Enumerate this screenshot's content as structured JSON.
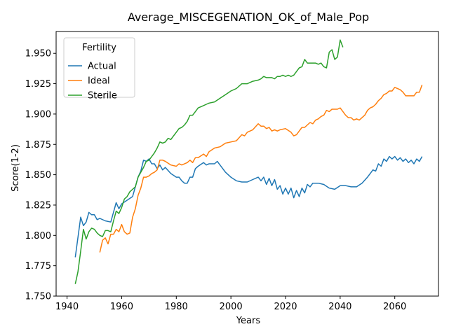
{
  "chart_data": {
    "type": "line",
    "title": "Average_MISCEGENATION_OK_of_Male_Pop",
    "xlabel": "Years",
    "ylabel": "Score(1-2)",
    "xlim": [
      1936,
      2076
    ],
    "ylim": [
      1.75,
      1.968
    ],
    "xticks": [
      1940,
      1960,
      1980,
      2000,
      2020,
      2040,
      2060
    ],
    "yticks": [
      1.75,
      1.775,
      1.8,
      1.825,
      1.85,
      1.875,
      1.9,
      1.925,
      1.95
    ],
    "ytick_labels": [
      "1.750",
      "1.775",
      "1.800",
      "1.825",
      "1.850",
      "1.875",
      "1.900",
      "1.925",
      "1.950"
    ],
    "grid": false,
    "legend": {
      "title": "Fertility",
      "placement": "top-left"
    },
    "series": [
      {
        "name": "Actual",
        "color": "#1f77b4",
        "x": [
          1943,
          1945,
          1946,
          1947,
          1948,
          1949,
          1950,
          1951,
          1952,
          1954,
          1956,
          1958,
          1959,
          1960,
          1962,
          1964,
          1966,
          1967,
          1968,
          1969,
          1970,
          1971,
          1972,
          1973,
          1974,
          1975,
          1976,
          1978,
          1980,
          1981,
          1982,
          1983,
          1984,
          1985,
          1986,
          1987,
          1988,
          1990,
          1991,
          1992,
          1994,
          1995,
          1996,
          1998,
          2000,
          2002,
          2004,
          2006,
          2008,
          2010,
          2011,
          2012,
          2013,
          2014,
          2015,
          2016,
          2017,
          2018,
          2019,
          2020,
          2021,
          2022,
          2023,
          2024,
          2025,
          2026,
          2027,
          2028,
          2029,
          2030,
          2032,
          2034,
          2036,
          2038,
          2040,
          2042,
          2044,
          2046,
          2048,
          2050,
          2052,
          2053,
          2054,
          2055,
          2056,
          2057,
          2058,
          2059,
          2060,
          2061,
          2062,
          2063,
          2064,
          2065,
          2066,
          2067,
          2068,
          2069,
          2070
        ],
        "y": [
          1.782,
          1.815,
          1.808,
          1.811,
          1.819,
          1.817,
          1.817,
          1.813,
          1.814,
          1.812,
          1.811,
          1.827,
          1.822,
          1.826,
          1.829,
          1.832,
          1.848,
          1.853,
          1.862,
          1.861,
          1.863,
          1.859,
          1.859,
          1.855,
          1.858,
          1.854,
          1.856,
          1.851,
          1.848,
          1.848,
          1.845,
          1.843,
          1.843,
          1.848,
          1.848,
          1.855,
          1.857,
          1.86,
          1.858,
          1.859,
          1.859,
          1.861,
          1.858,
          1.852,
          1.848,
          1.845,
          1.844,
          1.844,
          1.846,
          1.848,
          1.845,
          1.848,
          1.842,
          1.847,
          1.841,
          1.846,
          1.838,
          1.841,
          1.834,
          1.839,
          1.834,
          1.839,
          1.831,
          1.837,
          1.832,
          1.839,
          1.835,
          1.842,
          1.84,
          1.843,
          1.843,
          1.842,
          1.839,
          1.838,
          1.841,
          1.841,
          1.84,
          1.84,
          1.843,
          1.848,
          1.854,
          1.853,
          1.859,
          1.857,
          1.863,
          1.861,
          1.865,
          1.863,
          1.865,
          1.862,
          1.864,
          1.861,
          1.863,
          1.86,
          1.862,
          1.859,
          1.863,
          1.861,
          1.865
        ]
      },
      {
        "name": "Ideal",
        "color": "#ff7f0e",
        "x": [
          1952,
          1953,
          1954,
          1955,
          1956,
          1957,
          1958,
          1959,
          1960,
          1961,
          1962,
          1963,
          1964,
          1965,
          1966,
          1967,
          1968,
          1969,
          1970,
          1971,
          1972,
          1973,
          1974,
          1975,
          1976,
          1978,
          1980,
          1981,
          1982,
          1984,
          1985,
          1986,
          1987,
          1988,
          1990,
          1991,
          1992,
          1994,
          1996,
          1998,
          2000,
          2002,
          2004,
          2005,
          2006,
          2008,
          2010,
          2011,
          2012,
          2013,
          2014,
          2015,
          2016,
          2017,
          2018,
          2020,
          2022,
          2023,
          2024,
          2025,
          2026,
          2027,
          2028,
          2029,
          2030,
          2031,
          2032,
          2033,
          2034,
          2035,
          2036,
          2037,
          2038,
          2039,
          2040,
          2041,
          2042,
          2043,
          2044,
          2045,
          2046,
          2047,
          2048,
          2049,
          2050,
          2051,
          2052,
          2053,
          2054,
          2055,
          2056,
          2057,
          2058,
          2059,
          2060,
          2062,
          2063,
          2064,
          2065,
          2066,
          2067,
          2068,
          2069,
          2070
        ],
        "y": [
          1.786,
          1.796,
          1.798,
          1.793,
          1.801,
          1.801,
          1.805,
          1.803,
          1.809,
          1.803,
          1.801,
          1.802,
          1.815,
          1.822,
          1.833,
          1.839,
          1.848,
          1.848,
          1.849,
          1.851,
          1.852,
          1.854,
          1.862,
          1.862,
          1.861,
          1.858,
          1.857,
          1.859,
          1.858,
          1.86,
          1.862,
          1.86,
          1.864,
          1.864,
          1.867,
          1.865,
          1.869,
          1.872,
          1.873,
          1.876,
          1.877,
          1.878,
          1.883,
          1.882,
          1.885,
          1.887,
          1.892,
          1.89,
          1.89,
          1.888,
          1.889,
          1.886,
          1.887,
          1.886,
          1.887,
          1.888,
          1.885,
          1.882,
          1.883,
          1.886,
          1.889,
          1.889,
          1.891,
          1.893,
          1.892,
          1.895,
          1.896,
          1.898,
          1.899,
          1.903,
          1.902,
          1.904,
          1.904,
          1.904,
          1.905,
          1.902,
          1.899,
          1.897,
          1.897,
          1.895,
          1.896,
          1.895,
          1.897,
          1.899,
          1.903,
          1.905,
          1.906,
          1.908,
          1.911,
          1.913,
          1.916,
          1.917,
          1.919,
          1.919,
          1.922,
          1.92,
          1.918,
          1.915,
          1.915,
          1.915,
          1.915,
          1.918,
          1.918,
          1.924
        ]
      },
      {
        "name": "Sterile",
        "color": "#2ca02c",
        "x": [
          1943,
          1944,
          1945,
          1946,
          1947,
          1948,
          1949,
          1950,
          1951,
          1952,
          1953,
          1954,
          1955,
          1956,
          1957,
          1958,
          1959,
          1960,
          1961,
          1962,
          1963,
          1964,
          1965,
          1966,
          1967,
          1968,
          1969,
          1970,
          1971,
          1972,
          1973,
          1974,
          1975,
          1976,
          1977,
          1978,
          1979,
          1980,
          1981,
          1982,
          1983,
          1984,
          1985,
          1986,
          1987,
          1988,
          1990,
          1991,
          1992,
          1994,
          1996,
          1998,
          2000,
          2002,
          2004,
          2006,
          2008,
          2010,
          2011,
          2012,
          2013,
          2014,
          2015,
          2016,
          2017,
          2018,
          2019,
          2020,
          2021,
          2022,
          2023,
          2024,
          2025,
          2026,
          2027,
          2028,
          2029,
          2030,
          2031,
          2032,
          2033,
          2034,
          2035,
          2036,
          2037,
          2038,
          2039,
          2040,
          2041
        ],
        "y": [
          1.76,
          1.77,
          1.787,
          1.805,
          1.797,
          1.803,
          1.806,
          1.805,
          1.802,
          1.8,
          1.799,
          1.804,
          1.804,
          1.803,
          1.812,
          1.82,
          1.818,
          1.823,
          1.83,
          1.832,
          1.836,
          1.838,
          1.84,
          1.848,
          1.852,
          1.856,
          1.861,
          1.862,
          1.865,
          1.868,
          1.872,
          1.877,
          1.876,
          1.877,
          1.88,
          1.879,
          1.882,
          1.885,
          1.888,
          1.889,
          1.891,
          1.894,
          1.899,
          1.899,
          1.902,
          1.905,
          1.907,
          1.908,
          1.909,
          1.91,
          1.913,
          1.916,
          1.919,
          1.921,
          1.925,
          1.925,
          1.927,
          1.928,
          1.929,
          1.931,
          1.93,
          1.93,
          1.93,
          1.929,
          1.931,
          1.931,
          1.932,
          1.931,
          1.932,
          1.931,
          1.932,
          1.935,
          1.938,
          1.939,
          1.945,
          1.942,
          1.942,
          1.942,
          1.942,
          1.941,
          1.942,
          1.939,
          1.938,
          1.951,
          1.953,
          1.945,
          1.947,
          1.961,
          1.955
        ]
      }
    ]
  }
}
